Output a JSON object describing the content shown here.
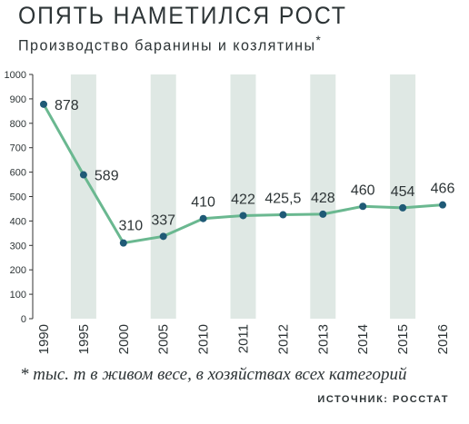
{
  "title": "ОПЯТЬ НАМЕТИЛСЯ РОСТ",
  "subtitle": "Производство баранины и козлятины",
  "subtitle_mark": "*",
  "footnote": "* тыс. т в живом весе, в хозяйствах всех категорий",
  "source": "ИСТОЧНИК: РОССТАТ",
  "colors": {
    "line": "#6ab890",
    "marker": "#1f5a76",
    "band": "#dfe8e4",
    "axis": "#333333",
    "text": "#2d3436"
  },
  "chart_data": {
    "type": "line",
    "title": "ОПЯТЬ НАМЕТИЛСЯ РОСТ",
    "subtitle": "Производство баранины и козлятины*",
    "categories": [
      "1990",
      "1995",
      "2000",
      "2005",
      "2010",
      "2011",
      "2012",
      "2013",
      "2014",
      "2015",
      "2016"
    ],
    "values": [
      878,
      589,
      310,
      337,
      410,
      422,
      425.5,
      428,
      460,
      454,
      466
    ],
    "value_labels": [
      "878",
      "589",
      "310",
      "337",
      "410",
      "422",
      "425,5",
      "428",
      "460",
      "454",
      "466"
    ],
    "y_ticks": [
      "0",
      "100",
      "200",
      "300",
      "400",
      "500",
      "600",
      "700",
      "800",
      "900",
      "1000"
    ],
    "ylim": [
      0,
      1000
    ],
    "alternating_bands": true,
    "grid": false,
    "legend": "none"
  }
}
